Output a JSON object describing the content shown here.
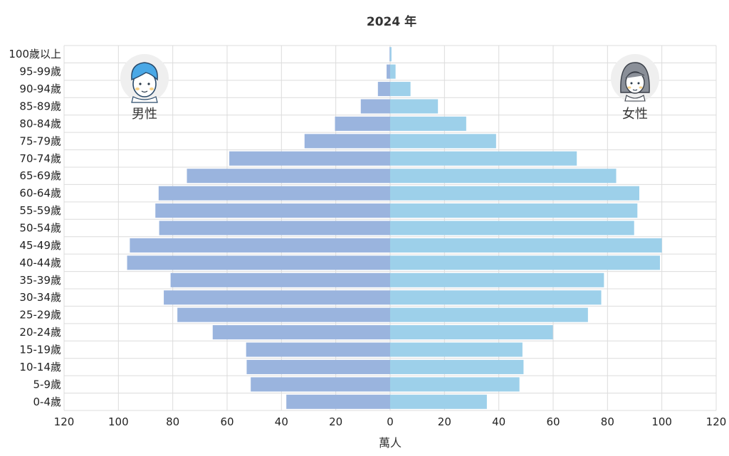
{
  "chart_data": {
    "type": "bar",
    "orientation": "horizontal-population-pyramid",
    "title": "2024 年",
    "xlabel": "萬人",
    "xlim": [
      -120,
      120
    ],
    "x_ticks": [
      -120,
      -100,
      -80,
      -60,
      -40,
      -20,
      0,
      20,
      40,
      60,
      80,
      100,
      120
    ],
    "x_tick_labels": [
      "120",
      "100",
      "80",
      "60",
      "40",
      "20",
      "0",
      "20",
      "40",
      "60",
      "80",
      "100",
      "120"
    ],
    "grid": true,
    "categories": [
      "100歲以上",
      "95-99歲",
      "90-94歲",
      "85-89歲",
      "80-84歲",
      "75-79歲",
      "70-74歲",
      "65-69歲",
      "60-64歲",
      "55-59歲",
      "50-54歲",
      "45-49歲",
      "40-44歲",
      "35-39歲",
      "30-34歲",
      "25-29歲",
      "20-24歲",
      "15-19歲",
      "10-14歲",
      "5-9歲",
      "0-4歲"
    ],
    "series": [
      {
        "name": "男性",
        "color": "#9ab4de",
        "values": [
          0.2,
          1.3,
          4.5,
          10.8,
          20.3,
          31.5,
          59.2,
          74.8,
          85.2,
          86.4,
          85.0,
          95.8,
          96.8,
          80.8,
          83.3,
          78.3,
          65.3,
          53.0,
          52.8,
          51.3,
          38.2
        ]
      },
      {
        "name": "女性",
        "color": "#9dd0ea",
        "values": [
          0.5,
          2.0,
          7.5,
          17.6,
          28.0,
          39.0,
          68.7,
          83.2,
          91.7,
          91.0,
          89.8,
          100.0,
          99.3,
          78.7,
          77.7,
          72.8,
          59.9,
          48.7,
          49.1,
          47.6,
          35.6
        ]
      }
    ]
  },
  "icons": {
    "male": "male-avatar-icon",
    "female": "female-avatar-icon"
  }
}
